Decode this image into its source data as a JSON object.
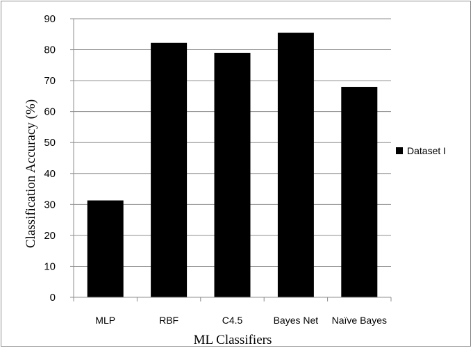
{
  "chart_data": {
    "type": "bar",
    "categories": [
      "MLP",
      "RBF",
      "C4.5",
      "Bayes Net",
      "Naïve Bayes"
    ],
    "series": [
      {
        "name": "Dataset I",
        "values": [
          31.3,
          82.2,
          79.0,
          85.5,
          68.0
        ],
        "color": "#000000"
      }
    ],
    "xlabel": "ML Classifiers",
    "ylabel": "Classification Accuracy (%)",
    "ylim": [
      0,
      90
    ],
    "yticks": [
      0,
      10,
      20,
      30,
      40,
      50,
      60,
      70,
      80,
      90
    ],
    "grid": true,
    "legend_position": "right"
  }
}
